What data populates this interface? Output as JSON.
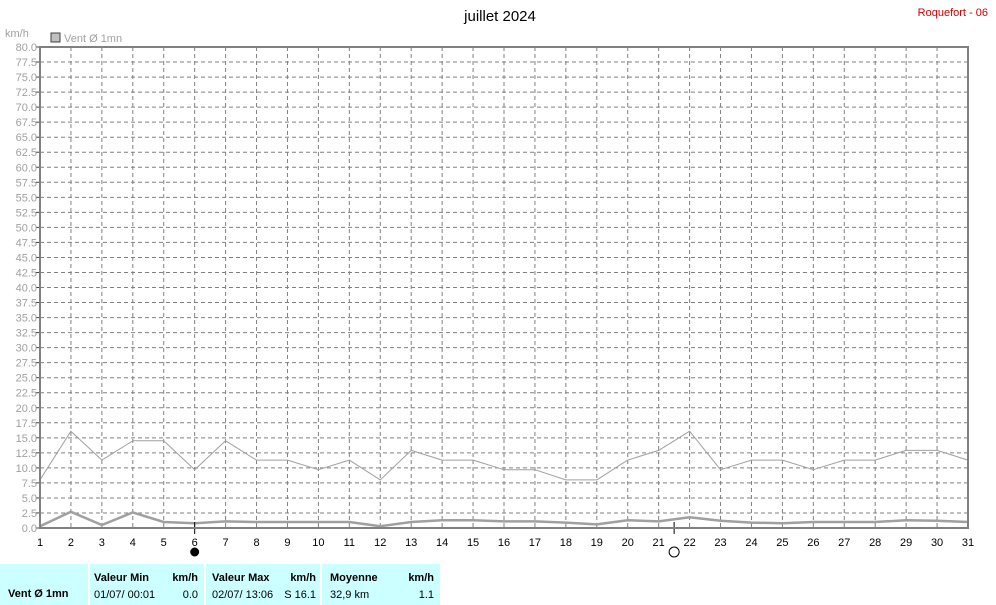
{
  "chart_data": {
    "type": "line",
    "title": "juillet 2024",
    "station": "Roquefort - 06",
    "ylabel": "km/h",
    "ylim": [
      0,
      80
    ],
    "ytick_step": 2.5,
    "grid": true,
    "legend": {
      "label": "Vent Ø 1mn",
      "position": "top-left"
    },
    "x": [
      1,
      2,
      3,
      4,
      5,
      6,
      7,
      8,
      9,
      10,
      11,
      12,
      13,
      14,
      15,
      16,
      17,
      18,
      19,
      20,
      21,
      22,
      23,
      24,
      25,
      26,
      27,
      28,
      29,
      30,
      31
    ],
    "series": [
      {
        "name": "",
        "role": "max",
        "values": [
          8.0,
          16.1,
          11.3,
          14.5,
          14.5,
          9.7,
          14.5,
          11.3,
          11.3,
          9.7,
          11.3,
          8.0,
          12.9,
          11.3,
          11.3,
          9.7,
          9.7,
          8.0,
          8.0,
          11.3,
          12.9,
          16.1,
          9.7,
          11.3,
          11.3,
          9.7,
          11.3,
          11.3,
          12.9,
          12.9,
          11.3
        ]
      },
      {
        "name": "",
        "role": "mean",
        "values": [
          0.3,
          2.7,
          0.5,
          2.6,
          1.0,
          0.8,
          1.1,
          1.0,
          1.0,
          1.0,
          1.0,
          0.3,
          1.0,
          1.3,
          1.3,
          1.1,
          1.1,
          0.9,
          0.6,
          1.3,
          1.1,
          1.8,
          1.2,
          0.9,
          0.8,
          1.0,
          1.0,
          1.0,
          1.3,
          1.2,
          1.0
        ]
      }
    ],
    "moon_phases": [
      {
        "day": 6,
        "phase": "new-moon"
      },
      {
        "day": 21.5,
        "phase": "full-moon"
      }
    ],
    "colors": {
      "line": "#a0a0a0",
      "grid": "#808080",
      "axis_text": "#000000",
      "station": "#cc0000",
      "footer_bg": "#ccffff"
    }
  },
  "summary": {
    "series_label": "Vent Ø 1mn",
    "min": {
      "header": "Valeur Min",
      "unit": "km/h",
      "date": "01/07/  00:01",
      "value": "0.0"
    },
    "max": {
      "header": "Valeur Max",
      "unit": "km/h",
      "date": "02/07/  13:06",
      "value": "S 16.1"
    },
    "mean": {
      "header": "Moyenne",
      "unit": "km/h",
      "distance": "32,9 km",
      "value": "1.1"
    }
  }
}
